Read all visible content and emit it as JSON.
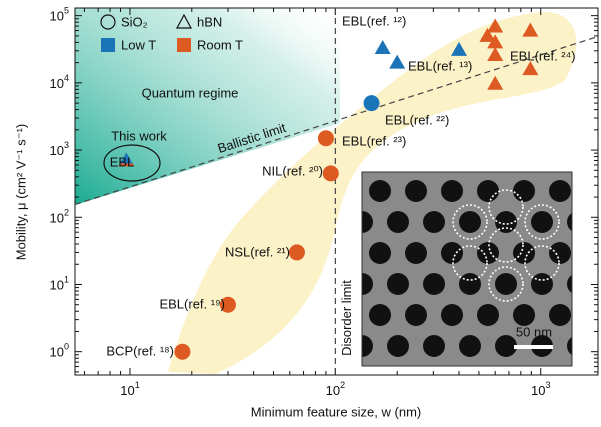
{
  "chart_data": {
    "type": "scatter",
    "xscale": "log",
    "yscale": "log",
    "xlabel": "Minimum feature size, w (nm)",
    "ylabel": "Mobility, μ (cm² V⁻¹ s⁻¹)",
    "xlim": [
      5.4,
      1900
    ],
    "ylim": [
      0.45,
      130000
    ],
    "xticks": [
      {
        "value": 10,
        "label": "10^1"
      },
      {
        "value": 100,
        "label": "10^2"
      },
      {
        "value": 1000,
        "label": "10^3"
      }
    ],
    "yticks": [
      {
        "value": 1,
        "label": "10^0"
      },
      {
        "value": 10,
        "label": "10^1"
      },
      {
        "value": 100,
        "label": "10^2"
      },
      {
        "value": 1000,
        "label": "10^3"
      },
      {
        "value": 10000,
        "label": "10^4"
      },
      {
        "value": 100000,
        "label": "10^5"
      }
    ],
    "minor_ticks": true,
    "legend": {
      "markers": [
        {
          "label": "SiO₂",
          "marker": "circle"
        },
        {
          "label": "hBN",
          "marker": "triangle"
        }
      ],
      "colors": [
        {
          "label": "Low T",
          "color": "#1b74b8"
        },
        {
          "label": "Room T",
          "color": "#dd5a22"
        }
      ]
    },
    "series": [
      {
        "marker": "circle",
        "color": "#dd5a22",
        "x": [
          18,
          30,
          65,
          95,
          90
        ],
        "values": [
          1,
          5,
          30,
          450,
          1500
        ],
        "labels": [
          "BCP(ref. ¹⁸)",
          "EBL(ref. ¹⁹)",
          "NSL(ref. ²¹)",
          "NIL(ref. ²⁰)",
          "EBL(ref. ²³)"
        ]
      },
      {
        "marker": "circle",
        "color": "#1b74b8",
        "x": [
          150
        ],
        "values": [
          5000
        ],
        "labels": [
          "EBL(ref. ²²)"
        ]
      },
      {
        "marker": "triangle",
        "color": "#1b74b8",
        "x": [
          170,
          200,
          400
        ],
        "values": [
          33000,
          20000,
          31000
        ]
      },
      {
        "marker": "triangle",
        "color": "#dd5a22",
        "x": [
          550,
          600,
          600,
          600,
          600,
          890,
          890
        ],
        "values": [
          50000,
          69000,
          40000,
          26000,
          9700,
          60000,
          16000
        ]
      },
      {
        "marker": "split-triangle",
        "color": "#1b74b8",
        "x": [
          9.6
        ],
        "values": [
          700
        ]
      }
    ],
    "annotations": [
      "EBL(ref. ¹²)",
      "EBL(ref. ¹³)",
      "EBL(ref. ²⁴)",
      "Quantum regime",
      "This work",
      "EBL",
      "50 nm"
    ],
    "ballistic_limit": {
      "label": "Ballistic limit",
      "x": [
        5.4,
        1900
      ],
      "y": [
        155,
        49000
      ]
    },
    "disorder_limit": {
      "label": "Disorder limit",
      "x": 100
    }
  }
}
